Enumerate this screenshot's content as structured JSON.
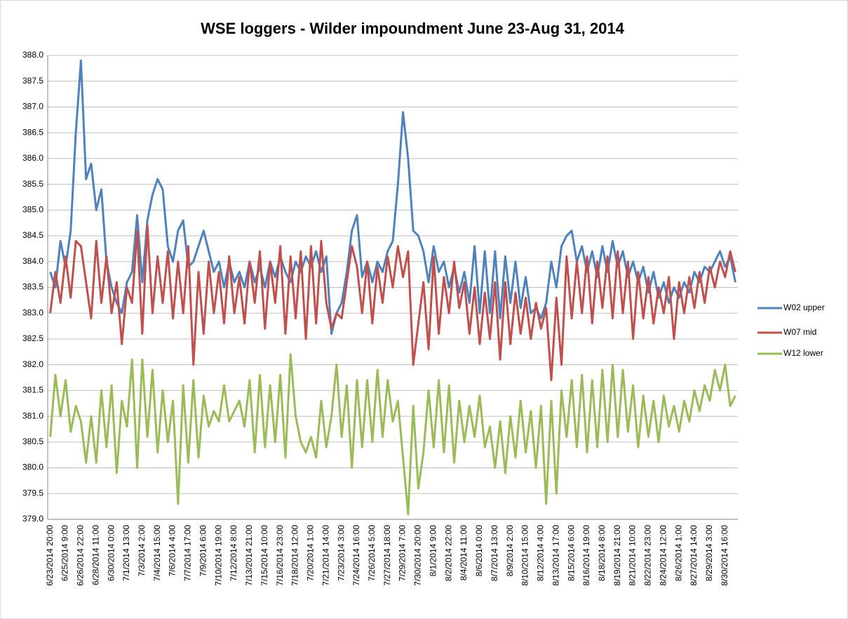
{
  "chart_data": {
    "type": "line",
    "title": "WSE loggers - Wilder impoundment June 23-Aug 31, 2014",
    "categories": [
      "6/23/2014 20:00",
      null,
      null,
      "6/25/2014 9:00",
      null,
      null,
      "6/26/2014 22:00",
      null,
      null,
      "6/28/2014 11:00",
      null,
      null,
      "6/30/2014 0:00",
      null,
      null,
      "7/1/2014 13:00",
      null,
      null,
      "7/3/2014 2:00",
      null,
      null,
      "7/4/2014 15:00",
      null,
      null,
      "7/6/2014 4:00",
      null,
      null,
      "7/7/2014 17:00",
      null,
      null,
      "7/9/2014 6:00",
      null,
      null,
      "7/10/2014 19:00",
      null,
      null,
      "7/12/2014 8:00",
      null,
      null,
      "7/13/2014 21:00",
      null,
      null,
      "7/15/2014 10:00",
      null,
      null,
      "7/16/2014 23:00",
      null,
      null,
      "7/18/2014 12:00",
      null,
      null,
      "7/20/2014 1:00",
      null,
      null,
      "7/21/2014 14:00",
      null,
      null,
      "7/23/2014 3:00",
      null,
      null,
      "7/24/2014 16:00",
      null,
      null,
      "7/26/2014 5:00",
      null,
      null,
      "7/27/2014 18:00",
      null,
      null,
      "7/29/2014 7:00",
      null,
      null,
      "7/30/2014 20:00",
      null,
      null,
      "8/1/2014 9:00",
      null,
      null,
      "8/2/2014 22:00",
      null,
      null,
      "8/4/2014 11:00",
      null,
      null,
      "8/6/2014 0:00",
      null,
      null,
      "8/7/2014 13:00",
      null,
      null,
      "8/9/2014 2:00",
      null,
      null,
      "8/10/2014 15:00",
      null,
      null,
      "8/12/2014 4:00",
      null,
      null,
      "8/13/2014 17:00",
      null,
      null,
      "8/15/2014 6:00",
      null,
      null,
      "8/16/2014 19:00",
      null,
      null,
      "8/18/2014 8:00",
      null,
      null,
      "8/19/2014 21:00",
      null,
      null,
      "8/21/2014 10:00",
      null,
      null,
      "8/22/2014 23:00",
      null,
      null,
      "8/24/2014 12:00",
      null,
      null,
      "8/26/2014 1:00",
      null,
      null,
      "8/27/2014 14:00",
      null,
      null,
      "8/29/2014 3:00",
      null,
      null,
      "8/30/2014 16:00",
      null,
      null
    ],
    "series": [
      {
        "name": "W02 upper",
        "color": "#4f81bd",
        "values": [
          383.8,
          383.5,
          384.4,
          383.9,
          384.6,
          386.5,
          387.9,
          385.6,
          385.9,
          385.0,
          385.4,
          384.0,
          383.5,
          383.2,
          383.0,
          383.6,
          383.8,
          384.9,
          383.6,
          384.8,
          385.3,
          385.6,
          385.4,
          384.3,
          384.0,
          384.6,
          384.8,
          383.9,
          384.0,
          384.3,
          384.6,
          384.2,
          383.8,
          384.0,
          383.5,
          384.0,
          383.6,
          383.8,
          383.5,
          384.0,
          383.6,
          383.9,
          383.5,
          384.0,
          383.7,
          384.1,
          383.8,
          383.6,
          384.0,
          383.8,
          384.1,
          383.9,
          384.2,
          383.8,
          384.1,
          382.6,
          383.0,
          383.2,
          383.8,
          384.6,
          384.9,
          383.7,
          384.0,
          383.6,
          384.0,
          383.8,
          384.2,
          384.4,
          385.5,
          386.9,
          386.0,
          384.6,
          384.5,
          384.2,
          383.6,
          384.3,
          383.8,
          384.0,
          383.5,
          383.9,
          383.4,
          383.8,
          383.2,
          384.3,
          383.0,
          384.2,
          383.0,
          384.2,
          382.9,
          384.1,
          383.2,
          384.0,
          383.1,
          383.7,
          383.0,
          383.1,
          382.9,
          383.2,
          384.0,
          383.5,
          384.3,
          384.5,
          384.6,
          384.0,
          384.3,
          383.8,
          384.2,
          383.7,
          384.3,
          383.8,
          384.4,
          383.9,
          384.2,
          383.7,
          384.0,
          383.6,
          383.9,
          383.4,
          383.8,
          383.3,
          383.6,
          383.2,
          383.5,
          383.3,
          383.6,
          383.4,
          383.8,
          383.6,
          383.9,
          383.8,
          384.0,
          384.2,
          383.9,
          384.1,
          383.6
        ]
      },
      {
        "name": "W07 mid",
        "color": "#c0504d",
        "values": [
          383.0,
          383.8,
          383.2,
          384.1,
          383.3,
          384.4,
          384.3,
          383.6,
          382.9,
          384.4,
          383.2,
          384.1,
          383.0,
          383.6,
          382.4,
          383.5,
          383.2,
          384.6,
          382.6,
          384.7,
          383.0,
          384.1,
          383.2,
          384.2,
          382.9,
          384.0,
          383.0,
          384.3,
          382.0,
          383.8,
          382.6,
          384.0,
          383.0,
          383.8,
          382.8,
          384.1,
          383.0,
          383.7,
          382.8,
          384.0,
          383.2,
          384.2,
          382.7,
          384.0,
          383.2,
          384.3,
          382.6,
          384.1,
          382.9,
          384.2,
          382.5,
          384.3,
          382.8,
          384.4,
          383.2,
          382.7,
          383.0,
          382.9,
          383.6,
          384.3,
          383.9,
          383.0,
          384.0,
          382.8,
          383.9,
          383.2,
          384.1,
          383.5,
          384.3,
          383.7,
          384.2,
          382.0,
          382.8,
          383.6,
          382.3,
          384.1,
          382.6,
          383.7,
          383.0,
          384.0,
          383.1,
          383.6,
          382.6,
          383.5,
          382.4,
          383.4,
          382.5,
          383.6,
          382.1,
          383.6,
          382.4,
          383.4,
          382.6,
          383.3,
          382.5,
          383.2,
          382.7,
          383.1,
          381.7,
          383.3,
          382.0,
          384.1,
          382.9,
          384.0,
          383.0,
          384.1,
          382.8,
          384.0,
          383.1,
          384.1,
          382.9,
          384.2,
          383.0,
          384.0,
          382.5,
          383.8,
          382.9,
          383.7,
          382.8,
          383.5,
          383.0,
          383.7,
          382.5,
          383.6,
          383.0,
          383.7,
          383.1,
          383.8,
          383.2,
          383.9,
          383.5,
          384.0,
          383.7,
          384.2,
          383.8
        ]
      },
      {
        "name": "W12 lower",
        "color": "#9bbb59",
        "values": [
          380.6,
          381.8,
          381.0,
          381.7,
          380.7,
          381.2,
          380.9,
          380.1,
          381.0,
          380.1,
          381.5,
          380.4,
          381.6,
          379.9,
          381.3,
          380.8,
          382.1,
          380.0,
          382.1,
          380.6,
          381.9,
          380.3,
          381.5,
          380.5,
          381.3,
          379.3,
          381.6,
          380.1,
          381.7,
          380.2,
          381.4,
          380.8,
          381.1,
          380.9,
          381.6,
          380.9,
          381.1,
          381.3,
          380.8,
          381.7,
          380.3,
          381.8,
          380.4,
          381.6,
          380.5,
          381.8,
          380.2,
          382.2,
          381.0,
          380.5,
          380.3,
          380.6,
          380.2,
          381.3,
          380.4,
          381.0,
          382.0,
          380.6,
          381.6,
          380.0,
          381.7,
          380.4,
          381.7,
          380.5,
          381.9,
          380.6,
          381.7,
          380.9,
          381.3,
          380.2,
          379.1,
          381.2,
          379.6,
          380.3,
          381.5,
          380.4,
          381.7,
          380.3,
          381.6,
          380.1,
          381.3,
          380.5,
          381.2,
          380.6,
          381.4,
          380.4,
          380.8,
          380.0,
          380.9,
          379.9,
          381.0,
          380.2,
          381.3,
          380.3,
          381.1,
          380.0,
          381.2,
          379.3,
          381.3,
          379.5,
          381.5,
          380.6,
          381.7,
          380.4,
          381.8,
          380.3,
          381.7,
          380.4,
          381.9,
          380.5,
          382.0,
          380.6,
          381.9,
          380.7,
          381.6,
          380.4,
          381.4,
          380.6,
          381.3,
          380.5,
          381.4,
          380.8,
          381.2,
          380.7,
          381.3,
          380.9,
          381.5,
          381.1,
          381.6,
          381.3,
          381.9,
          381.5,
          382.0,
          381.2,
          381.4
        ]
      }
    ],
    "ylim": [
      379,
      388
    ],
    "yticks": [
      {
        "value": 379,
        "label": "379.0"
      },
      {
        "value": 379.5,
        "label": "379.5"
      },
      {
        "value": 380,
        "label": "380.0"
      },
      {
        "value": 380.5,
        "label": "380.5"
      },
      {
        "value": 381,
        "label": "381.0"
      },
      {
        "value": 381.5,
        "label": "381.5"
      },
      {
        "value": 382,
        "label": "382.0"
      },
      {
        "value": 382.5,
        "label": "382.5"
      },
      {
        "value": 383,
        "label": "383.0"
      },
      {
        "value": 383.5,
        "label": "383.5"
      },
      {
        "value": 384,
        "label": "384.0"
      },
      {
        "value": 384.5,
        "label": "384.5"
      },
      {
        "value": 385,
        "label": "385.0"
      },
      {
        "value": 385.5,
        "label": "385.5"
      },
      {
        "value": 386,
        "label": "386.0"
      },
      {
        "value": 386.5,
        "label": "386.5"
      },
      {
        "value": 387,
        "label": "387.0"
      },
      {
        "value": 387.5,
        "label": "387.5"
      },
      {
        "value": 388,
        "label": "388.0"
      }
    ],
    "grid": true,
    "legend": "right"
  }
}
